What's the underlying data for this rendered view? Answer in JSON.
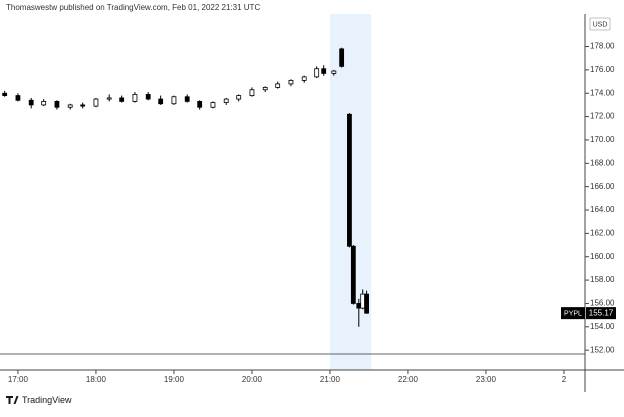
{
  "header": {
    "text": "Thomaswestw published on TradingView.com, Feb 01, 2022 21:31 UTC"
  },
  "footer": {
    "brand": "TradingView"
  },
  "chart_data": {
    "type": "candlestick",
    "currency": "USD",
    "symbol": "PYPL",
    "last_price": {
      "value": 155.17,
      "label": "155.17"
    },
    "up_color": "#ffffff",
    "down_color": "#000000",
    "highlight_range": [
      21.0,
      21.53
    ],
    "highlight_color": "#e8f2fd",
    "x": [
      16.83,
      17.0,
      17.17,
      17.33,
      17.5,
      17.67,
      17.83,
      18.0,
      18.17,
      18.33,
      18.5,
      18.67,
      18.83,
      19.0,
      19.17,
      19.33,
      19.5,
      19.67,
      19.83,
      20.0,
      20.17,
      20.33,
      20.5,
      20.67,
      20.83,
      20.92,
      21.05,
      21.15,
      21.25,
      21.3,
      21.37,
      21.42,
      21.47
    ],
    "open": [
      174.0,
      173.8,
      173.4,
      173.0,
      173.3,
      172.8,
      173.0,
      172.9,
      173.5,
      173.6,
      173.3,
      173.9,
      173.5,
      173.1,
      173.7,
      173.3,
      172.8,
      173.2,
      173.5,
      173.8,
      174.3,
      174.5,
      174.8,
      175.1,
      175.4,
      176.1,
      175.7,
      177.8,
      172.2,
      160.9,
      156.0,
      155.6,
      156.8
    ],
    "high": [
      174.2,
      174.0,
      173.6,
      173.5,
      173.4,
      173.1,
      173.2,
      173.6,
      173.9,
      173.8,
      174.1,
      174.1,
      173.8,
      173.8,
      173.9,
      173.4,
      173.3,
      173.6,
      173.9,
      174.5,
      174.6,
      175.0,
      175.2,
      175.5,
      176.3,
      176.4,
      176.0,
      177.9,
      172.3,
      161.0,
      156.4,
      157.2,
      157.1
    ],
    "low": [
      173.7,
      173.3,
      172.7,
      172.9,
      172.6,
      172.6,
      172.7,
      172.8,
      173.3,
      173.2,
      173.2,
      173.4,
      173.0,
      173.0,
      173.2,
      172.6,
      172.7,
      173.0,
      173.3,
      173.7,
      174.1,
      174.4,
      174.6,
      174.9,
      175.3,
      175.5,
      175.5,
      176.2,
      160.8,
      155.9,
      154.0,
      155.5,
      155.1
    ],
    "close": [
      173.8,
      173.4,
      173.0,
      173.3,
      172.8,
      173.0,
      172.9,
      173.5,
      173.6,
      173.3,
      173.9,
      173.5,
      173.1,
      173.7,
      173.3,
      172.8,
      173.2,
      173.5,
      173.8,
      174.3,
      174.5,
      174.8,
      175.1,
      175.4,
      176.1,
      175.7,
      175.9,
      176.3,
      160.9,
      156.0,
      155.6,
      156.8,
      155.17
    ],
    "xlim": [
      16.77,
      24.27
    ],
    "ylim": [
      150.3,
      181.3
    ],
    "xticks": [
      {
        "value": 17,
        "label": "17:00"
      },
      {
        "value": 18,
        "label": "18:00"
      },
      {
        "value": 19,
        "label": "19:00"
      },
      {
        "value": 20,
        "label": "20:00"
      },
      {
        "value": 21,
        "label": "21:00"
      },
      {
        "value": 22,
        "label": "22:00"
      },
      {
        "value": 23,
        "label": "23:00"
      },
      {
        "value": 24,
        "label": "2"
      }
    ],
    "yticks": [
      {
        "value": 152,
        "label": "152.00"
      },
      {
        "value": 154,
        "label": "154.00"
      },
      {
        "value": 156,
        "label": "156.00"
      },
      {
        "value": 158,
        "label": "158.00"
      },
      {
        "value": 160,
        "label": "160.00"
      },
      {
        "value": 162,
        "label": "162.00"
      },
      {
        "value": 164,
        "label": "164.00"
      },
      {
        "value": 166,
        "label": "166.00"
      },
      {
        "value": 168,
        "label": "168.00"
      },
      {
        "value": 170,
        "label": "170.00"
      },
      {
        "value": 172,
        "label": "172.00"
      },
      {
        "value": 174,
        "label": "174.00"
      },
      {
        "value": 176,
        "label": "176.00"
      },
      {
        "value": 178,
        "label": "178.00"
      }
    ]
  }
}
